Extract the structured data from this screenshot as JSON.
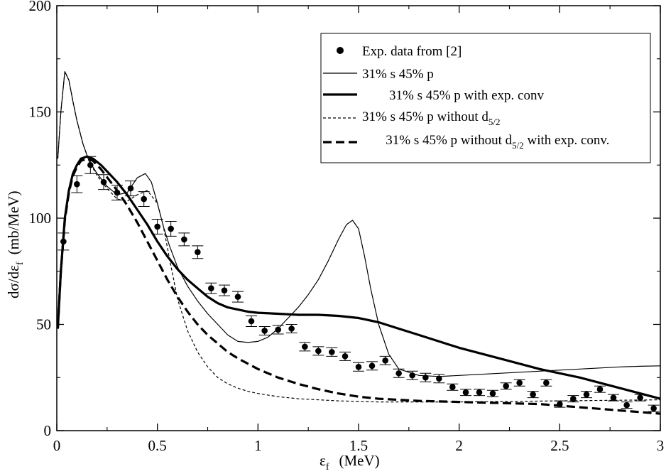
{
  "chart_data": {
    "type": "line",
    "title": "",
    "xlabel": {
      "main": "ε",
      "sub": "f",
      "unit": "(MeV)"
    },
    "ylabel": {
      "main": "dσ/dε",
      "sub": "f",
      "unit": "(mb/MeV)"
    },
    "xlim": [
      0,
      3
    ],
    "ylim": [
      0,
      200
    ],
    "xticks": [
      0,
      0.5,
      1,
      1.5,
      2,
      2.5,
      3
    ],
    "xtick_labels": [
      "0",
      "0.5",
      "1",
      "1.5",
      "2",
      "2.5",
      "3"
    ],
    "yticks": [
      0,
      50,
      100,
      150,
      200
    ],
    "ytick_labels": [
      "0",
      "50",
      "100",
      "150",
      "200"
    ],
    "grid": false,
    "legend_position": "top-right",
    "legend": [
      {
        "id": "exp",
        "parts": [
          "Exp. data from [2]"
        ]
      },
      {
        "id": "thin",
        "parts": [
          "31% s 45% p"
        ]
      },
      {
        "id": "thick",
        "parts": [
          " 31% s 45% p with exp. conv"
        ]
      },
      {
        "id": "thin_dash",
        "parts": [
          "31% s 45% p without d",
          "5/2"
        ]
      },
      {
        "id": "thick_dash",
        "parts": [
          "31% s 45% p without d",
          "5/2",
          " with exp. conv."
        ]
      }
    ],
    "series": [
      {
        "name": "Exp. data from [2]",
        "kind": "scatter",
        "x": [
          0.033,
          0.1,
          0.167,
          0.233,
          0.3,
          0.367,
          0.433,
          0.5,
          0.567,
          0.633,
          0.7,
          0.767,
          0.833,
          0.9,
          0.967,
          1.033,
          1.1,
          1.167,
          1.233,
          1.3,
          1.367,
          1.433,
          1.5,
          1.567,
          1.633,
          1.7,
          1.767,
          1.833,
          1.9,
          1.967,
          2.033,
          2.1,
          2.167,
          2.233,
          2.3,
          2.367,
          2.433,
          2.5,
          2.567,
          2.633,
          2.7,
          2.767,
          2.833,
          2.9,
          2.967
        ],
        "y": [
          89,
          116,
          125,
          117,
          112,
          114,
          109,
          96,
          95,
          90,
          84,
          67,
          66,
          63,
          51.5,
          47,
          47.5,
          48,
          39.5,
          37.5,
          37,
          35,
          30,
          30.5,
          33,
          27,
          26,
          25,
          24.5,
          20.5,
          18,
          18,
          17.5,
          21,
          22.5,
          17,
          22.5,
          12.5,
          15,
          17,
          19.5,
          15.5,
          12,
          15.5,
          10.5
        ],
        "err": [
          4,
          4,
          4,
          3.5,
          3.5,
          3.5,
          3.5,
          3.5,
          3.5,
          3,
          3,
          2.5,
          2.5,
          2.5,
          2.5,
          2,
          2,
          2,
          2,
          2,
          2,
          2,
          2,
          2,
          2,
          2,
          2,
          2,
          2,
          1.5,
          1.5,
          1.5,
          1.5,
          1.5,
          1.5,
          1.5,
          1.5,
          1.5,
          1.5,
          1.5,
          1.5,
          1.5,
          1.5,
          1.5,
          1.5
        ]
      },
      {
        "name": "31% s 45% p",
        "kind": "line",
        "style": "thin",
        "x": [
          0.005,
          0.02,
          0.04,
          0.06,
          0.08,
          0.1,
          0.13,
          0.16,
          0.2,
          0.25,
          0.3,
          0.35,
          0.4,
          0.44,
          0.47,
          0.5,
          0.53,
          0.56,
          0.6,
          0.65,
          0.7,
          0.75,
          0.8,
          0.85,
          0.9,
          0.95,
          1.0,
          1.05,
          1.1,
          1.15,
          1.2,
          1.25,
          1.3,
          1.35,
          1.4,
          1.44,
          1.47,
          1.5,
          1.53,
          1.56,
          1.6,
          1.65,
          1.7,
          1.8,
          1.9,
          2.0,
          2.1,
          2.2,
          2.3,
          2.4,
          2.5,
          2.6,
          2.7,
          2.8,
          2.9,
          3.0
        ],
        "y": [
          128,
          150,
          169,
          165,
          155,
          146,
          135,
          127,
          121,
          115,
          111,
          112,
          119,
          121,
          117,
          107,
          96,
          87,
          77,
          68,
          61,
          55,
          50,
          45,
          42,
          41.5,
          42,
          44,
          48,
          53,
          58,
          64,
          71,
          80,
          90,
          97,
          99,
          95,
          82,
          67,
          50,
          36,
          29,
          26,
          25.5,
          26,
          26.5,
          27,
          27.5,
          28,
          28.5,
          29,
          29.5,
          30,
          30.3,
          30.5
        ]
      },
      {
        "name": "31% s 45% p with exp. conv",
        "kind": "line",
        "style": "thick",
        "x": [
          0.005,
          0.02,
          0.04,
          0.06,
          0.08,
          0.1,
          0.12,
          0.15,
          0.18,
          0.22,
          0.26,
          0.3,
          0.35,
          0.4,
          0.45,
          0.5,
          0.55,
          0.6,
          0.65,
          0.7,
          0.75,
          0.8,
          0.85,
          0.9,
          0.95,
          1.0,
          1.1,
          1.2,
          1.3,
          1.4,
          1.5,
          1.6,
          1.7,
          1.8,
          1.9,
          2.0,
          2.2,
          2.4,
          2.6,
          2.8,
          3.0
        ],
        "y": [
          48,
          75,
          100,
          113,
          121,
          125,
          128,
          129,
          128,
          125,
          121,
          117,
          111,
          104,
          97,
          89,
          82,
          76,
          71,
          67,
          63,
          60,
          58,
          57,
          56,
          55.5,
          55,
          54.5,
          54.5,
          54,
          53,
          51,
          48,
          45,
          42,
          39,
          34,
          29,
          25,
          20,
          15
        ]
      },
      {
        "name": "31% s 45% p without d5/2",
        "kind": "line",
        "style": "thin_dash",
        "x": [
          0.005,
          0.02,
          0.04,
          0.06,
          0.08,
          0.1,
          0.13,
          0.16,
          0.2,
          0.25,
          0.3,
          0.35,
          0.4,
          0.45,
          0.5,
          0.53,
          0.56,
          0.6,
          0.65,
          0.7,
          0.75,
          0.8,
          0.85,
          0.9,
          0.95,
          1.0,
          1.1,
          1.2,
          1.4,
          1.6,
          1.8,
          2.0,
          2.5,
          3.0
        ],
        "y": [
          128,
          150,
          169,
          165,
          155,
          146,
          135,
          127,
          120,
          114,
          109,
          108,
          111,
          113,
          107,
          96,
          81,
          62,
          47,
          37,
          30,
          25,
          22,
          20,
          18.5,
          17.5,
          16,
          15,
          14,
          13.5,
          13.5,
          13.5,
          14,
          14.5
        ]
      },
      {
        "name": "31% s 45% p without d5/2 with exp. conv.",
        "kind": "line",
        "style": "thick_dash",
        "x": [
          0.005,
          0.02,
          0.04,
          0.06,
          0.08,
          0.1,
          0.12,
          0.15,
          0.18,
          0.22,
          0.26,
          0.3,
          0.35,
          0.4,
          0.45,
          0.5,
          0.55,
          0.6,
          0.65,
          0.7,
          0.75,
          0.8,
          0.85,
          0.9,
          0.95,
          1.0,
          1.1,
          1.2,
          1.3,
          1.4,
          1.5,
          1.6,
          1.7,
          1.8,
          2.0,
          2.2,
          2.4,
          2.6,
          2.8,
          3.0
        ],
        "y": [
          48,
          75,
          99,
          112,
          120,
          124,
          127,
          128,
          127,
          123,
          118,
          113,
          106,
          98,
          89,
          80,
          71,
          63,
          56,
          50,
          45,
          41,
          37,
          34,
          31.5,
          29,
          25,
          22,
          19.5,
          17.5,
          16,
          15,
          14.5,
          14,
          13.5,
          13,
          12.5,
          11,
          9.5,
          8
        ]
      }
    ]
  }
}
